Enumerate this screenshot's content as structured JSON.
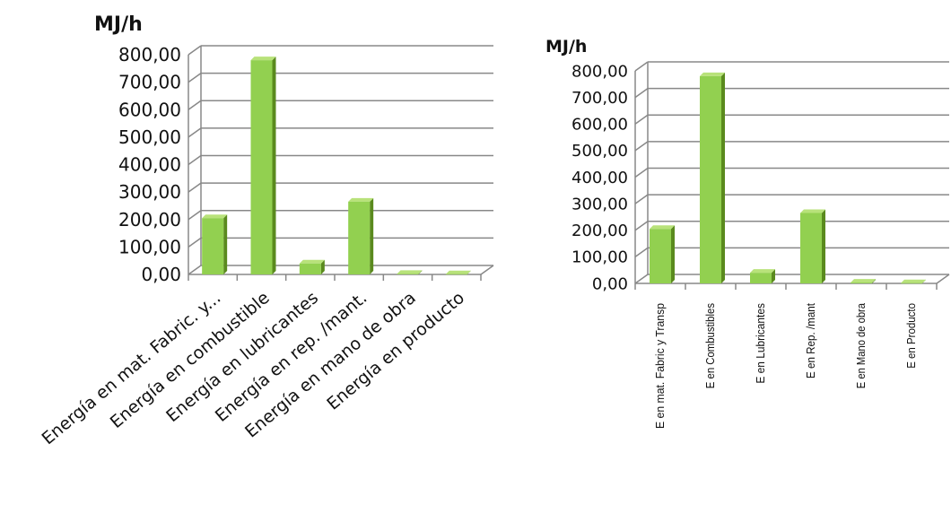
{
  "chart_data": [
    {
      "type": "bar",
      "ylabel": "MJ/h",
      "ylim": [
        0,
        800
      ],
      "ytick_labels": [
        "0,00",
        "100,00",
        "200,00",
        "300,00",
        "400,00",
        "500,00",
        "600,00",
        "700,00",
        "800,00"
      ],
      "categories": [
        "Energía en mat. Fabric. y...",
        "Energía en combustible",
        "Energía en lubricantes",
        "Energía en rep. /mant.",
        "Energía en mano de obra",
        "Energía en producto"
      ],
      "values": [
        205,
        780,
        40,
        265,
        2,
        1
      ],
      "grid": true,
      "legend": "none"
    },
    {
      "type": "bar",
      "ylabel": "MJ/h",
      "ylim": [
        0,
        800
      ],
      "ytick_labels": [
        "0,00",
        "100,00",
        "200,00",
        "300,00",
        "400,00",
        "500,00",
        "600,00",
        "700,00",
        "800,00"
      ],
      "categories": [
        "E en mat. Fabric y Transp",
        "E en Combustibles",
        "E en Lubricantes",
        "E en Rep. /mant",
        "E en Mano de obra",
        "E en Producto"
      ],
      "values": [
        205,
        780,
        40,
        265,
        3,
        1
      ],
      "grid": true,
      "legend": "none"
    }
  ],
  "colors": {
    "bar_front": "#92d050",
    "bar_side": "#5a8a1e",
    "bar_top": "#b8e27a",
    "grid": "#888888"
  }
}
